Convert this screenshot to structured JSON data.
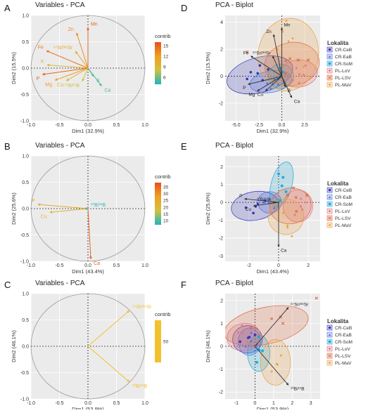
{
  "chart_data": [
    {
      "panel": "A",
      "type": "scatter",
      "subtype": "pca-variable-correlation-circle",
      "title": "Variables - PCA",
      "xlabel": "Dim1 (32.9%)",
      "ylabel": "Dim2 (15.5%)",
      "xlim": [
        -1.0,
        1.0
      ],
      "ylim": [
        -1.0,
        1.0
      ],
      "xticks": [
        "-1.0",
        "-0.5",
        "0.0",
        "0.5",
        "1.0"
      ],
      "yticks": [
        "-1.0",
        "-0.5",
        "0.0",
        "0.5",
        "1.0"
      ],
      "legend": {
        "title": "contrib",
        "ticks": [
          "15",
          "12",
          "9",
          "6"
        ],
        "colors": [
          "#e8501a",
          "#f0a020",
          "#d2c040",
          "#1bb7c0"
        ],
        "range": [
          4,
          16
        ],
        "placement": "right"
      },
      "vectors": [
        {
          "label": "Mn",
          "x": 0.0,
          "y": 0.77,
          "contrib": 15
        },
        {
          "label": "Zn",
          "x": -0.2,
          "y": 0.67,
          "contrib": 13
        },
        {
          "label": "Fe",
          "x": -0.73,
          "y": 0.33,
          "contrib": 14
        },
        {
          "label": "⁸⁷Sr/⁸⁶Sr",
          "x": -0.22,
          "y": 0.32,
          "contrib": 11
        },
        {
          "label": "K",
          "x": -0.72,
          "y": 0.06,
          "contrib": 9
        },
        {
          "label": "P",
          "x": -0.8,
          "y": -0.12,
          "contrib": 15
        },
        {
          "label": "Mg",
          "x": -0.58,
          "y": -0.23,
          "contrib": 12
        },
        {
          "label": "Cu",
          "x": -0.38,
          "y": -0.24,
          "contrib": 10
        },
        {
          "label": "¹⁰B/¹¹B",
          "x": -0.1,
          "y": -0.25,
          "contrib": 8
        },
        {
          "label": "B",
          "x": 0.1,
          "y": -0.16,
          "contrib": 6
        },
        {
          "label": "Ca",
          "x": 0.24,
          "y": -0.34,
          "contrib": 5
        }
      ]
    },
    {
      "panel": "B",
      "type": "scatter",
      "subtype": "pca-variable-correlation-circle",
      "title": "Variables - PCA",
      "xlabel": "Dim1 (43.4%)",
      "ylabel": "Dim2 (25.6%)",
      "xlim": [
        -1.0,
        1.0
      ],
      "ylim": [
        -1.0,
        1.0
      ],
      "xticks": [
        "-1.0",
        "-0.5",
        "0.0",
        "0.5",
        "1.0"
      ],
      "yticks": [
        "-1.0",
        "-0.5",
        "0.0",
        "0.5",
        "1.0"
      ],
      "legend": {
        "title": "contrib",
        "ticks": [
          "35",
          "30",
          "25",
          "20",
          "15",
          "10"
        ],
        "colors": [
          "#e8501a",
          "#f0a020",
          "#d2c040",
          "#1bb7c0"
        ],
        "range": [
          7,
          38
        ],
        "placement": "right"
      },
      "vectors": [
        {
          "label": "P",
          "x": -0.88,
          "y": 0.08,
          "contrib": 24
        },
        {
          "label": "Cu",
          "x": -0.67,
          "y": -0.07,
          "contrib": 22
        },
        {
          "label": "¹⁰B/¹¹B",
          "x": 0.0,
          "y": 0.0,
          "contrib": 8
        },
        {
          "label": "Ca",
          "x": 0.05,
          "y": -0.96,
          "contrib": 36
        }
      ]
    },
    {
      "panel": "C",
      "type": "scatter",
      "subtype": "pca-variable-correlation-circle",
      "title": "Variables - PCA",
      "xlabel": "Dim1 (53.9%)",
      "ylabel": "Dim2 (46.1%)",
      "xlim": [
        -1.0,
        1.0
      ],
      "ylim": [
        -1.0,
        1.0
      ],
      "xticks": [
        "-1.0",
        "-0.5",
        "0.0",
        "0.5",
        "1.0"
      ],
      "yticks": [
        "-1.0",
        "-0.5",
        "0.0",
        "0.5",
        "1.0"
      ],
      "legend": {
        "title": "contrib",
        "ticks": [
          "50"
        ],
        "colors": [
          "#f2c12e"
        ],
        "range": [
          40,
          60
        ],
        "placement": "right"
      },
      "vectors": [
        {
          "label": "⁸⁷Sr/⁸⁶Sr",
          "x": 0.73,
          "y": 0.68,
          "contrib": 50
        },
        {
          "label": "¹⁰B/¹¹B",
          "x": 0.73,
          "y": -0.68,
          "contrib": 50
        }
      ]
    },
    {
      "panel": "D",
      "type": "scatter",
      "subtype": "pca-biplot",
      "title": "PCA - Biplot",
      "xlabel": "Dim1 (32.9%)",
      "ylabel": "Dim2 (15.5%)",
      "xlim": [
        -6.2,
        4.2
      ],
      "ylim": [
        -3.3,
        4.5
      ],
      "xticks": [
        -5.0,
        -2.5,
        0.0,
        2.5
      ],
      "xticklabels": [
        "-5.0",
        "-2.5",
        "0.0",
        "2.5"
      ],
      "yticks": [
        -2,
        0,
        2,
        4
      ],
      "legend": {
        "title": "Lokalita",
        "placement": "right"
      },
      "groups": [
        {
          "name": "CR-CeB",
          "marker": "circle",
          "color": "#3434b4",
          "ellipse": {
            "cx": -2.4,
            "cy": 0.1,
            "rx": 3.7,
            "ry": 1.3,
            "angle": 15
          },
          "points": [
            [
              -2.4,
              0.8
            ],
            [
              -3.4,
              0.3
            ],
            [
              -2.1,
              -0.3
            ],
            [
              -1.5,
              0.5
            ],
            [
              -3.8,
              -0.2
            ]
          ]
        },
        {
          "name": "CR-EaB",
          "marker": "triangle",
          "color": "#4e6fe0",
          "ellipse": {
            "cx": -1.2,
            "cy": -0.4,
            "rx": 2.3,
            "ry": 0.8,
            "angle": 10
          },
          "points": [
            [
              -1.6,
              -0.5
            ],
            [
              -0.8,
              -0.2
            ],
            [
              -1.2,
              -0.9
            ],
            [
              -0.4,
              -0.6
            ]
          ]
        },
        {
          "name": "CR-SoM",
          "marker": "square",
          "color": "#22a7d8",
          "ellipse": {
            "cx": -0.1,
            "cy": 0.0,
            "rx": 1.4,
            "ry": 0.9,
            "angle": 0
          },
          "points": [
            [
              0.1,
              0.3
            ],
            [
              -0.4,
              -0.2
            ],
            [
              0.3,
              -0.5
            ],
            [
              -0.2,
              0.6
            ]
          ]
        },
        {
          "name": "PL-LoV",
          "marker": "plus",
          "color": "#e07083",
          "ellipse": {
            "cx": 1.8,
            "cy": 0.2,
            "rx": 2.1,
            "ry": 1.0,
            "angle": 5
          },
          "points": [
            [
              1.6,
              0.6
            ],
            [
              2.4,
              0.1
            ],
            [
              1.2,
              -0.3
            ],
            [
              2.6,
              0.8
            ],
            [
              1.9,
              -0.5
            ]
          ]
        },
        {
          "name": "PL-LSV",
          "marker": "cross",
          "color": "#e0643c",
          "ellipse": {
            "cx": 1.1,
            "cy": 0.9,
            "rx": 3.0,
            "ry": 1.6,
            "angle": 10
          },
          "points": [
            [
              0.9,
              1.3
            ],
            [
              1.8,
              1.2
            ],
            [
              0.4,
              0.2
            ],
            [
              2.9,
              1.2
            ],
            [
              -3.8,
              1.8
            ]
          ]
        },
        {
          "name": "PL-MaV",
          "marker": "diamond",
          "color": "#e8a040",
          "ellipse": {
            "cx": 0.7,
            "cy": 1.6,
            "rx": 3.3,
            "ry": 2.7,
            "angle": -10
          },
          "points": [
            [
              0.5,
              4.1
            ],
            [
              1.2,
              2.8
            ],
            [
              -0.5,
              2.0
            ],
            [
              2.4,
              0.7
            ],
            [
              0.1,
              3.3
            ]
          ]
        }
      ],
      "vectors": [
        {
          "label": "Mn",
          "x": 0.0,
          "y": 3.6
        },
        {
          "label": "Zn",
          "x": -0.9,
          "y": 3.1
        },
        {
          "label": "Fe",
          "x": -3.4,
          "y": 1.5
        },
        {
          "label": "⁸⁷Sr/⁸⁶Sr",
          "x": -1.0,
          "y": 1.5
        },
        {
          "label": "P",
          "x": -3.7,
          "y": -0.6
        },
        {
          "label": "Mg",
          "x": -2.7,
          "y": -1.1
        },
        {
          "label": "Cu",
          "x": -1.8,
          "y": -1.1
        },
        {
          "label": "B",
          "x": 0.4,
          "y": -0.8
        },
        {
          "label": "Ca",
          "x": 1.1,
          "y": -1.6
        }
      ]
    },
    {
      "panel": "E",
      "type": "scatter",
      "subtype": "pca-biplot",
      "title": "PCA - Biplot",
      "xlabel": "Dim1 (43.4%)",
      "ylabel": "Dim2 (25.6%)",
      "xlim": [
        -3.6,
        2.8
      ],
      "ylim": [
        -3.3,
        2.6
      ],
      "xticks": [
        -2,
        0,
        2
      ],
      "yticks": [
        -3,
        -2,
        -1,
        0,
        1,
        2
      ],
      "legend": {
        "title": "Lokalita",
        "placement": "right"
      },
      "groups": [
        {
          "name": "CR-CeB",
          "marker": "circle",
          "color": "#3434b4",
          "ellipse": {
            "cx": -1.6,
            "cy": -0.2,
            "rx": 1.6,
            "ry": 0.8,
            "angle": 10
          },
          "points": [
            [
              -1.4,
              -0.1
            ],
            [
              -2.2,
              -0.3
            ],
            [
              -0.9,
              0.1
            ],
            [
              -1.7,
              -0.6
            ]
          ]
        },
        {
          "name": "CR-EaB",
          "marker": "triangle",
          "color": "#4e6fe0",
          "ellipse": {
            "cx": -0.6,
            "cy": 0.0,
            "rx": 0.8,
            "ry": 0.6,
            "angle": 0
          },
          "points": [
            [
              -0.6,
              0.2
            ],
            [
              -0.3,
              -0.3
            ],
            [
              -1.0,
              0.0
            ]
          ]
        },
        {
          "name": "CR-SoM",
          "marker": "square",
          "color": "#22a7d8",
          "ellipse": {
            "cx": 0.2,
            "cy": 1.0,
            "rx": 0.7,
            "ry": 1.3,
            "angle": -15
          },
          "points": [
            [
              0.3,
              1.4
            ],
            [
              0.0,
              1.6
            ],
            [
              0.5,
              0.6
            ],
            [
              0.1,
              0.1
            ]
          ]
        },
        {
          "name": "PL-LoV",
          "marker": "plus",
          "color": "#e07083",
          "ellipse": {
            "cx": 1.3,
            "cy": -0.2,
            "rx": 1.0,
            "ry": 0.9,
            "angle": 0
          },
          "points": [
            [
              1.5,
              0.2
            ],
            [
              1.8,
              0.0
            ],
            [
              1.1,
              -0.7
            ],
            [
              1.6,
              -0.4
            ]
          ]
        },
        {
          "name": "PL-LSV",
          "marker": "cross",
          "color": "#e0643c",
          "ellipse": {
            "cx": 0.8,
            "cy": -0.2,
            "rx": 1.4,
            "ry": 1.0,
            "angle": 10
          },
          "points": [
            [
              1.0,
              0.8
            ],
            [
              0.6,
              0.4
            ],
            [
              1.2,
              -0.5
            ],
            [
              1.9,
              0.4
            ]
          ]
        },
        {
          "name": "PL-MaV",
          "marker": "diamond",
          "color": "#e8a040",
          "ellipse": {
            "cx": 0.5,
            "cy": -0.8,
            "rx": 1.2,
            "ry": 1.0,
            "angle": -20
          },
          "points": [
            [
              0.9,
              -1.9
            ],
            [
              0.3,
              -0.6
            ],
            [
              0.6,
              -1.4
            ]
          ]
        }
      ],
      "vectors": [
        {
          "label": "P",
          "x": -2.3,
          "y": 0.2
        },
        {
          "label": "Cu",
          "x": -1.7,
          "y": -0.2
        },
        {
          "label": "¹⁰B/¹¹B",
          "x": -0.4,
          "y": 0.0
        },
        {
          "label": "Ca",
          "x": 0.0,
          "y": -2.5
        }
      ]
    },
    {
      "panel": "F",
      "type": "scatter",
      "subtype": "pca-biplot",
      "title": "PCA - Biplot",
      "xlabel": "Dim1 (53.9%)",
      "ylabel": "Dim2 (46.1%)",
      "xlim": [
        -1.6,
        3.5
      ],
      "ylim": [
        -2.3,
        2.3
      ],
      "xticks": [
        -1,
        0,
        1,
        2,
        3
      ],
      "yticks": [
        -2,
        -1,
        0,
        1,
        2
      ],
      "legend": {
        "title": "Lokalita",
        "placement": "right"
      },
      "groups": [
        {
          "name": "CR-CeB",
          "marker": "circle",
          "color": "#3434b4",
          "ellipse": {
            "cx": -0.4,
            "cy": 0.3,
            "rx": 0.8,
            "ry": 0.6,
            "angle": 0
          },
          "points": [
            [
              -0.3,
              0.4
            ],
            [
              -0.8,
              0.2
            ],
            [
              0.0,
              0.5
            ]
          ]
        },
        {
          "name": "CR-EaB",
          "marker": "triangle",
          "color": "#4e6fe0",
          "ellipse": {
            "cx": -0.3,
            "cy": 0.2,
            "rx": 0.6,
            "ry": 0.6,
            "angle": 0
          },
          "points": [
            [
              -0.2,
              0.6
            ],
            [
              -0.5,
              0.0
            ],
            [
              0.1,
              0.1
            ]
          ]
        },
        {
          "name": "CR-SoM",
          "marker": "square",
          "color": "#22a7d8",
          "ellipse": {
            "cx": 0.2,
            "cy": -0.3,
            "rx": 0.6,
            "ry": 0.8,
            "angle": 0
          },
          "points": [
            [
              0.2,
              0.4
            ],
            [
              0.1,
              -0.7
            ],
            [
              0.4,
              -0.2
            ]
          ]
        },
        {
          "name": "PL-LoV",
          "marker": "plus",
          "color": "#e07083",
          "ellipse": {
            "cx": -0.6,
            "cy": 0.4,
            "rx": 0.9,
            "ry": 0.6,
            "angle": 10
          },
          "points": [
            [
              -0.9,
              0.6
            ],
            [
              -0.4,
              0.2
            ],
            [
              -0.7,
              0.9
            ]
          ]
        },
        {
          "name": "PL-LSV",
          "marker": "cross",
          "color": "#e0643c",
          "ellipse": {
            "cx": 0.6,
            "cy": 0.9,
            "rx": 2.3,
            "ry": 0.8,
            "angle": 12
          },
          "points": [
            [
              3.3,
              2.1
            ],
            [
              0.9,
              1.2
            ],
            [
              -0.2,
              0.8
            ],
            [
              1.5,
              1.0
            ]
          ]
        },
        {
          "name": "PL-MaV",
          "marker": "diamond",
          "color": "#e8a040",
          "ellipse": {
            "cx": 1.1,
            "cy": -0.7,
            "rx": 0.8,
            "ry": 1.0,
            "angle": 0
          },
          "points": [
            [
              1.2,
              -0.8
            ],
            [
              0.9,
              -1.1
            ],
            [
              1.4,
              -0.4
            ]
          ]
        }
      ],
      "vectors": [
        {
          "label": "⁸⁷Sr/⁸⁶Sr",
          "x": 1.8,
          "y": 1.7
        },
        {
          "label": "¹⁰B/¹¹B",
          "x": 1.8,
          "y": -1.7
        }
      ]
    }
  ],
  "panel_letters": [
    "A",
    "B",
    "C",
    "D",
    "E",
    "F"
  ],
  "grad_colors": [
    "#1bb7c0",
    "#d2c040",
    "#f0a020",
    "#e8501a"
  ],
  "single_color": "#f2c12e",
  "arrow_color": "#333333"
}
